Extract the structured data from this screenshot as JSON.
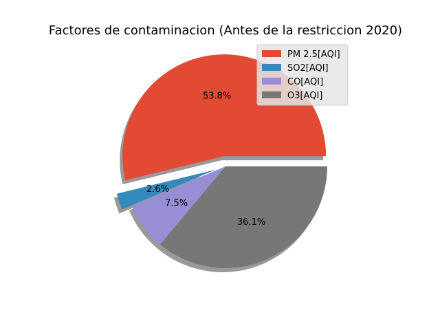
{
  "chart_data": {
    "type": "pie",
    "title": "Factores de contaminacion (Antes de la restriccion 2020)",
    "categories": [
      "PM 2.5[AQI]",
      "SO2[AQI]",
      "CO[AQI]",
      "O3[AQI]"
    ],
    "values": [
      53.8,
      2.6,
      7.5,
      36.1
    ],
    "value_labels": [
      "53.8%",
      "2.6%",
      "7.5%",
      "36.1%"
    ],
    "colors": [
      "#E24A33",
      "#348ABD",
      "#988ED5",
      "#777777"
    ],
    "exploded": [
      true,
      true,
      false,
      false
    ],
    "shadow": true,
    "legend_position": "top-right"
  }
}
